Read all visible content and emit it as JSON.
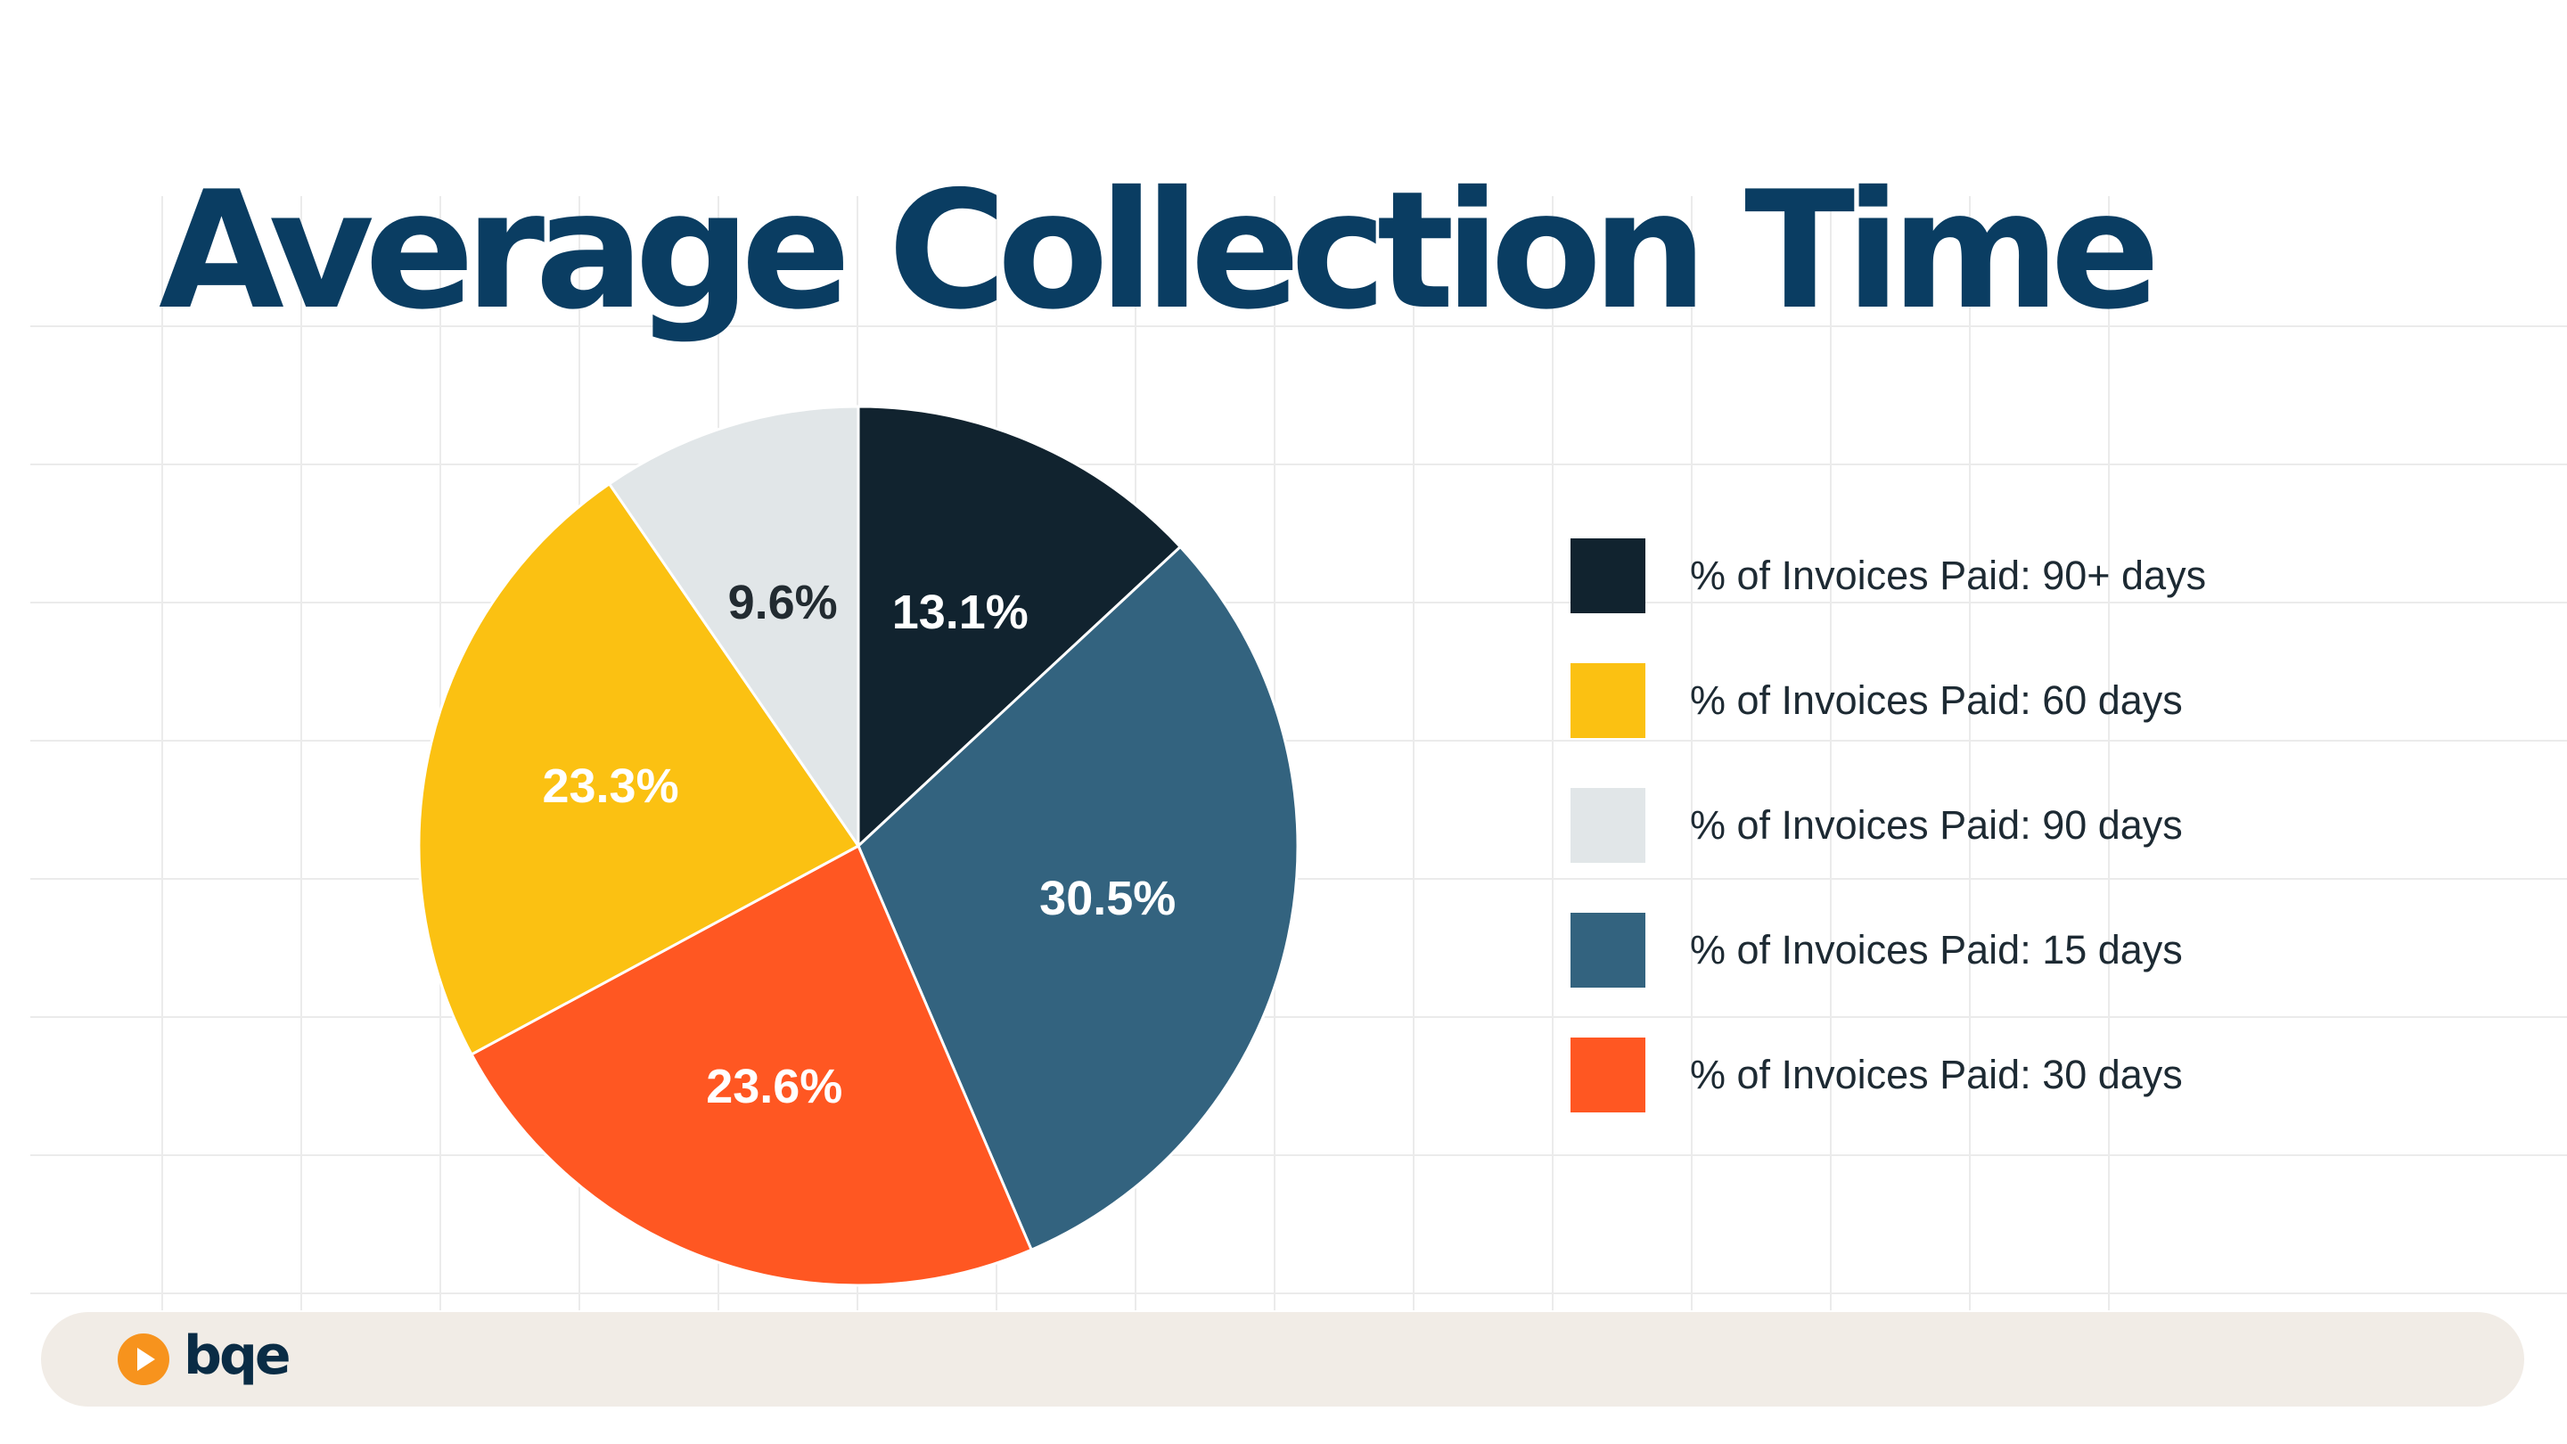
{
  "title": "Average Collection Time",
  "chart_data": {
    "type": "pie",
    "title": "Average Collection Time",
    "slices": [
      {
        "name": "% of Invoices Paid: 90+ days",
        "value": 13.1,
        "label": "13.1%",
        "color": "#11232f",
        "label_color": "#ffffff"
      },
      {
        "name": "% of Invoices Paid: 15 days",
        "value": 30.5,
        "label": "30.5%",
        "color": "#33637f",
        "label_color": "#ffffff"
      },
      {
        "name": "% of Invoices Paid: 30 days",
        "value": 23.6,
        "label": "23.6%",
        "color": "#ff5722",
        "label_color": "#ffffff"
      },
      {
        "name": "% of Invoices Paid: 60 days",
        "value": 23.3,
        "label": "23.3%",
        "color": "#fbc112",
        "label_color": "#ffffff"
      },
      {
        "name": "% of Invoices Paid: 90 days",
        "value": 9.6,
        "label": "9.6%",
        "color": "#e1e6e8",
        "label_color": "#222b31"
      }
    ],
    "start": "12 o'clock",
    "direction": "clockwise",
    "legend": {
      "placement": "right",
      "order": [
        "% of Invoices Paid: 90+ days",
        "% of Invoices Paid: 60 days",
        "% of Invoices Paid: 90 days",
        "% of Invoices Paid: 15 days",
        "% of Invoices Paid: 30 days"
      ]
    }
  },
  "legend_items": [
    {
      "label": "% of Invoices Paid: 90+ days",
      "color": "#11232f"
    },
    {
      "label": "% of Invoices Paid: 60 days",
      "color": "#fbc112"
    },
    {
      "label": "% of Invoices Paid: 90 days",
      "color": "#e1e6e8"
    },
    {
      "label": "% of Invoices Paid: 15 days",
      "color": "#33637f"
    },
    {
      "label": "% of Invoices Paid: 30 days",
      "color": "#ff5722"
    }
  ],
  "colors": {
    "title": "#0a3d62",
    "grid": "#ebebeb",
    "footer_bg": "#f1ece6",
    "logo_orange": "#f7931d",
    "logo_text": "#0a2c45"
  },
  "footer": {
    "logo_text": "bqe",
    "logo_icon": "play-circle-icon"
  }
}
